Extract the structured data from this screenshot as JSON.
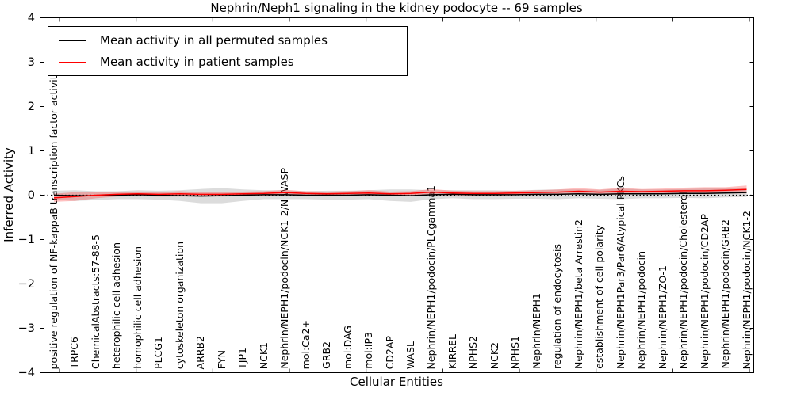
{
  "figure": {
    "title": "Nephrin/Neph1 signaling in the kidney podocyte -- 69 samples",
    "xlabel": "Cellular Entities",
    "ylabel": "Inferred Activity"
  },
  "legend": {
    "position": "upper left",
    "items": [
      {
        "label": "Mean activity in all permuted samples",
        "color": "#000000"
      },
      {
        "label": "Mean activity in patient samples",
        "color": "#ff0000"
      }
    ]
  },
  "chart_data": {
    "type": "line",
    "title": "Nephrin/Neph1 signaling in the kidney podocyte -- 69 samples",
    "xlabel": "Cellular Entities",
    "ylabel": "Inferred Activity",
    "ylim": [
      -4,
      4
    ],
    "ytick_values": [
      4,
      3,
      2,
      1,
      0,
      -1,
      -2,
      -3,
      -4
    ],
    "ytick_labels": [
      "4",
      "3",
      "2",
      "1",
      "0",
      "−1",
      "−2",
      "−3",
      "−4"
    ],
    "grid": false,
    "legend_position": "upper left",
    "zero_reference_line": {
      "value": 0,
      "style": "dotted",
      "color": "#000000"
    },
    "categories": [
      "positive regulation of NF-kappaB transcription factor activity",
      "TRPC6",
      "ChemicalAbstracts:57-88-5",
      "heterophilic cell adhesion",
      "homophilic cell adhesion",
      "PLCG1",
      "cytoskeleton organization",
      "ARRB2",
      "FYN",
      "TJP1",
      "NCK1",
      "Nephrin/NEPH1/podocin/NCK1-2/N-WASP",
      "mol:Ca2+",
      "GRB2",
      "mol:DAG",
      "mol:IP3",
      "CD2AP",
      "WASL",
      "Nephrin/NEPH1/podocin/PLCgamma1",
      "KIRREL",
      "NPHS2",
      "NCK2",
      "NPHS1",
      "Nephrin/NEPH1",
      "regulation of endocytosis",
      "Nephrin/NEPH1/beta Arrestin2",
      "establishment of cell polarity",
      "Nephrin/NEPH1Par3/Par6/Atypical PKCs",
      "Nephrin/NEPH1/podocin",
      "Nephrin/NEPH1/ZO-1",
      "Nephrin/NEPH1/podocin/Cholesterol",
      "Nephrin/NEPH1/podocin/CD2AP",
      "Nephrin/NEPH1/podocin/GRB2",
      "Nephrin/NEPH1/podocin/NCK1-2"
    ],
    "series": [
      {
        "name": "Mean activity in all permuted samples",
        "color": "#000000",
        "band_color": "rgba(130,130,130,0.28)",
        "values": [
          0.0,
          -0.01,
          -0.01,
          0.0,
          0.01,
          0.0,
          -0.01,
          -0.02,
          -0.01,
          0.0,
          0.01,
          0.01,
          0.0,
          0.0,
          0.0,
          0.01,
          0.0,
          -0.01,
          0.01,
          0.02,
          0.01,
          0.01,
          0.01,
          0.02,
          0.02,
          0.03,
          0.02,
          0.03,
          0.03,
          0.03,
          0.04,
          0.04,
          0.05,
          0.06
        ],
        "band_halfwidths": [
          0.1,
          0.12,
          0.1,
          0.09,
          0.1,
          0.1,
          0.12,
          0.16,
          0.17,
          0.13,
          0.1,
          0.1,
          0.09,
          0.1,
          0.1,
          0.1,
          0.13,
          0.14,
          0.1,
          0.09,
          0.1,
          0.1,
          0.09,
          0.1,
          0.11,
          0.1,
          0.1,
          0.12,
          0.1,
          0.1,
          0.1,
          0.11,
          0.1,
          0.1
        ]
      },
      {
        "name": "Mean activity in patient samples",
        "color": "#ff0000",
        "band_color": "rgba(255,45,45,0.30)",
        "values": [
          -0.06,
          -0.03,
          0.0,
          0.02,
          0.03,
          0.02,
          0.03,
          0.02,
          0.02,
          0.03,
          0.04,
          0.06,
          0.04,
          0.03,
          0.04,
          0.05,
          0.03,
          0.04,
          0.07,
          0.05,
          0.04,
          0.04,
          0.05,
          0.06,
          0.07,
          0.09,
          0.07,
          0.09,
          0.08,
          0.09,
          0.1,
          0.1,
          0.11,
          0.13
        ],
        "band_halfwidths": [
          0.09,
          0.1,
          0.07,
          0.05,
          0.05,
          0.05,
          0.06,
          0.05,
          0.05,
          0.05,
          0.05,
          0.06,
          0.05,
          0.05,
          0.05,
          0.06,
          0.05,
          0.05,
          0.07,
          0.05,
          0.05,
          0.05,
          0.05,
          0.05,
          0.06,
          0.07,
          0.06,
          0.08,
          0.06,
          0.06,
          0.07,
          0.08,
          0.07,
          0.09
        ]
      }
    ]
  }
}
